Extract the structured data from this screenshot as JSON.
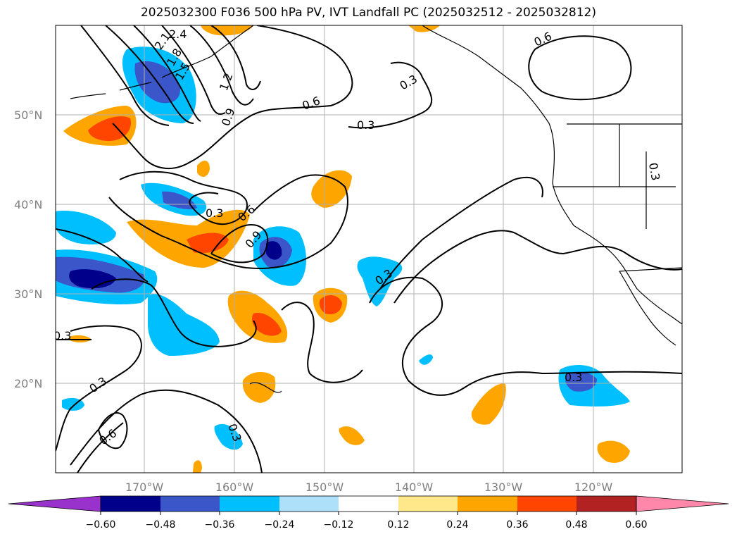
{
  "title": "2025032300 F036 500 hPa PV, IVT Landfall PC (2025032512 - 2025032812)",
  "map": {
    "lon_range": [
      -180,
      -110
    ],
    "lat_range": [
      10,
      60
    ],
    "lat_ticks": [
      "20°N",
      "30°N",
      "40°N",
      "50°N"
    ],
    "lon_ticks": [
      "170°W",
      "160°W",
      "150°W",
      "140°W",
      "130°W",
      "120°W"
    ],
    "grid": true
  },
  "contour_labels": [
    "2.4",
    "2.1",
    "1.8",
    "1.5",
    "1.2",
    "0.9",
    "0.6",
    "0.3",
    "0.3",
    "0.6",
    "0.3",
    "0.6",
    "0.9",
    "0.3",
    "0.3",
    "0.3",
    "0.3",
    "0.6",
    "0.3",
    "0.3"
  ],
  "colorbar": {
    "ticks": [
      "−0.60",
      "−0.48",
      "−0.36",
      "−0.24",
      "−0.12",
      "0.12",
      "0.24",
      "0.36",
      "0.48",
      "0.60"
    ],
    "colors": [
      "#9932cc",
      "#00008b",
      "#3a56c9",
      "#00bfff",
      "#afe0fa",
      "#ffffff",
      "#ffe88a",
      "#ffa500",
      "#ff4500",
      "#b22222",
      "#ff88aa"
    ]
  }
}
